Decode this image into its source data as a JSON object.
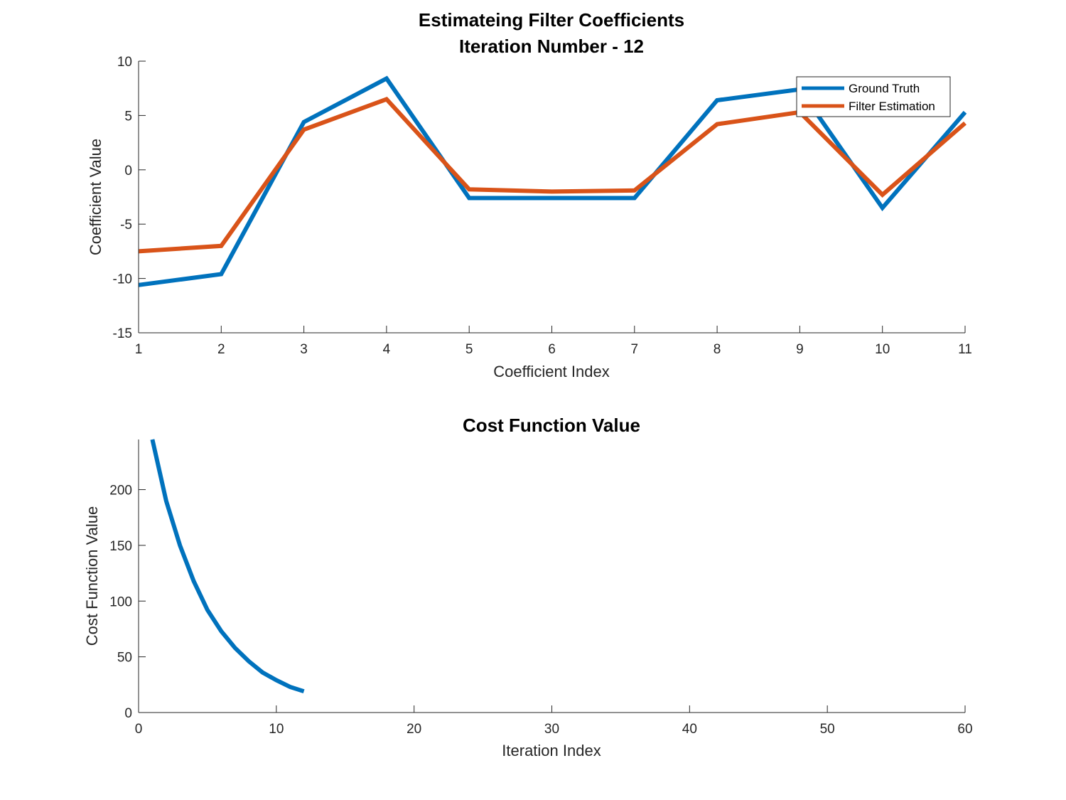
{
  "chart_data": [
    {
      "type": "line",
      "title_lines": [
        "Estimateing Filter Coefficients",
        "Iteration Number - 12"
      ],
      "xlabel": "Coefficient Index",
      "ylabel": "Coefficient Value",
      "xlim": [
        1,
        11
      ],
      "ylim": [
        -15,
        10
      ],
      "xticks": [
        1,
        2,
        3,
        4,
        5,
        6,
        7,
        8,
        9,
        10,
        11
      ],
      "yticks": [
        -15,
        -10,
        -5,
        0,
        5,
        10
      ],
      "x": [
        1,
        2,
        3,
        4,
        5,
        6,
        7,
        8,
        9,
        10,
        11
      ],
      "series": [
        {
          "name": "Ground Truth",
          "color": "#0072BD",
          "values": [
            -10.6,
            -9.6,
            4.4,
            8.4,
            -2.6,
            -2.6,
            -2.6,
            6.4,
            7.4,
            -3.5,
            5.3
          ]
        },
        {
          "name": "Filter Estimation",
          "color": "#D95319",
          "values": [
            -7.5,
            -7.0,
            3.7,
            6.5,
            -1.8,
            -2.0,
            -1.9,
            4.2,
            5.3,
            -2.3,
            4.3
          ]
        }
      ],
      "legend": "top-right",
      "grid": false
    },
    {
      "type": "line",
      "title": "Cost Function Value",
      "xlabel": "Iteration Index",
      "ylabel": "Cost Function Value",
      "xlim": [
        0,
        60
      ],
      "ylim": [
        0,
        245
      ],
      "xticks": [
        0,
        10,
        20,
        30,
        40,
        50,
        60
      ],
      "yticks": [
        0,
        50,
        100,
        150,
        200
      ],
      "x": [
        1,
        2,
        3,
        4,
        5,
        6,
        7,
        8,
        9,
        10,
        11,
        12
      ],
      "series": [
        {
          "color": "#0072BD",
          "values": [
            245,
            190,
            150,
            118,
            92,
            73,
            58,
            46,
            36,
            29,
            23,
            19
          ]
        }
      ],
      "grid": false
    }
  ]
}
